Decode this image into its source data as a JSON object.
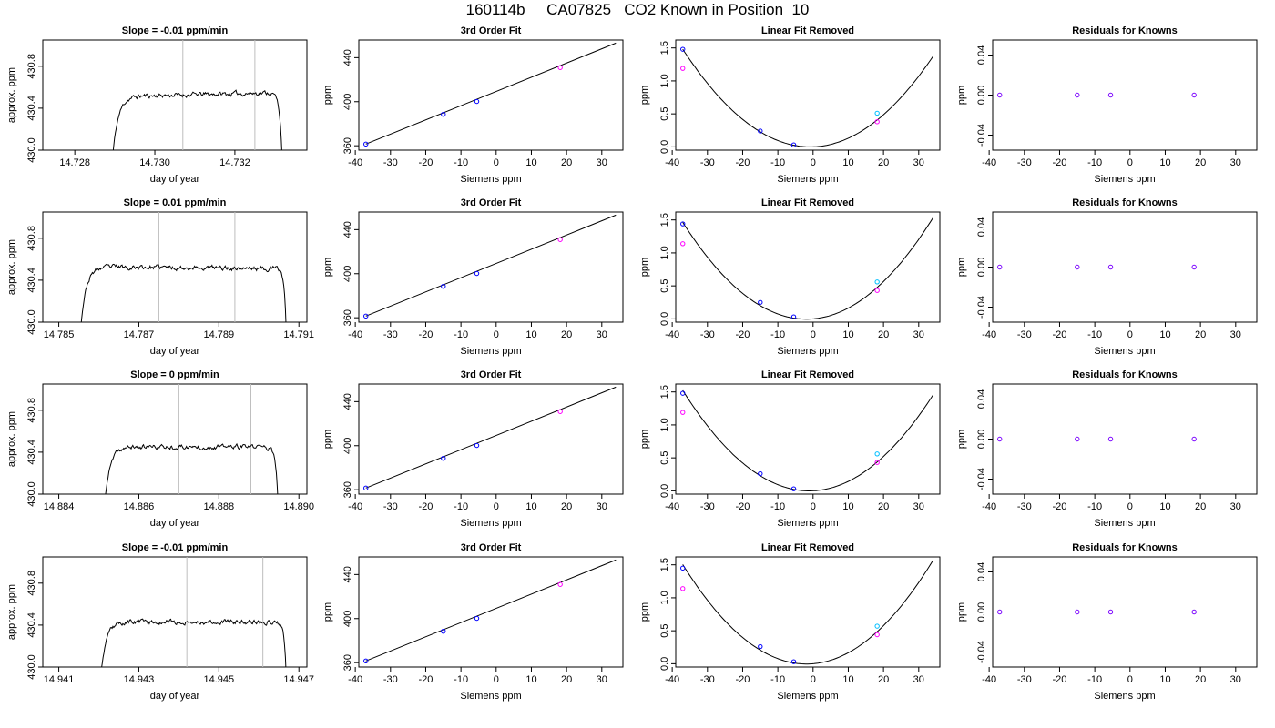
{
  "figure": {
    "title": "160114b     CA07825   CO2 Known in Position  10"
  },
  "colors": {
    "axis": "#000000",
    "curve": "#000000",
    "vline": "#bebebe",
    "point_blue": "#0000ff",
    "point_magenta": "#ff00ff",
    "point_cyan": "#00bfff",
    "point_purple": "#7a00ff"
  },
  "chart_data": [
    {
      "panel": "slope",
      "row": 1,
      "type": "line",
      "title": "Slope =  -0.01  ppm/min",
      "xlabel": "day of year",
      "ylabel": "approx. ppm",
      "xlim": [
        14.7272,
        14.7338
      ],
      "ylim": [
        430.0,
        431.05
      ],
      "xticks": [
        14.728,
        14.73,
        14.732
      ],
      "xtick_labels": [
        "14.728",
        "14.730",
        "14.732"
      ],
      "yticks": [
        430.0,
        430.4,
        430.8
      ],
      "ytick_labels": [
        "430.0",
        "430.4",
        "430.8"
      ],
      "vlines": [
        14.7307,
        14.7325
      ],
      "trace": {
        "start": 14.7289,
        "end": 14.7332,
        "plateau": 430.53,
        "drift": 0.04,
        "rise": 0.0003,
        "fall": 0.0001,
        "seed": 11
      }
    },
    {
      "panel": "fit",
      "row": 1,
      "type": "line",
      "title": "3rd Order Fit",
      "xlabel": "Siemens ppm",
      "ylabel": "ppm",
      "xlim": [
        -39,
        36
      ],
      "ylim": [
        356,
        456
      ],
      "xticks": [
        -40,
        -30,
        -20,
        -10,
        0,
        10,
        20,
        30
      ],
      "xtick_labels": [
        "-40",
        "-30",
        "-20",
        "-10",
        "0",
        "10",
        "20",
        "30"
      ],
      "yticks": [
        360,
        400,
        440
      ],
      "ytick_labels": [
        "360",
        "400",
        "440"
      ],
      "line": {
        "x": [
          -37,
          34
        ],
        "y": [
          361.5,
          453.2
        ]
      },
      "points": [
        {
          "x": -37,
          "y": 361.5,
          "color": "point_blue"
        },
        {
          "x": -15,
          "y": 388.5,
          "color": "point_blue"
        },
        {
          "x": -5.5,
          "y": 400.2,
          "color": "point_blue"
        },
        {
          "x": 18.2,
          "y": 431,
          "color": "point_magenta"
        }
      ]
    },
    {
      "panel": "linear",
      "row": 1,
      "type": "scatter",
      "title": "Linear Fit Removed",
      "xlabel": "Siemens ppm",
      "ylabel": "ppm",
      "xlim": [
        -39,
        36
      ],
      "ylim": [
        -0.05,
        1.62
      ],
      "xticks": [
        -40,
        -30,
        -20,
        -10,
        0,
        10,
        20,
        30
      ],
      "xtick_labels": [
        "-40",
        "-30",
        "-20",
        "-10",
        "0",
        "10",
        "20",
        "30"
      ],
      "yticks": [
        0.0,
        0.5,
        1.0,
        1.5
      ],
      "ytick_labels": [
        "0.0",
        "0.5",
        "1.0",
        "1.5"
      ],
      "curve": {
        "a": 0.00113,
        "b": 0.0018,
        "xmin": -37,
        "xmax": 34
      },
      "points": [
        {
          "x": -37,
          "y": 1.48,
          "color": "point_blue"
        },
        {
          "x": -37,
          "y": 1.19,
          "color": "point_magenta"
        },
        {
          "x": -15,
          "y": 0.24,
          "color": "point_blue"
        },
        {
          "x": -5.5,
          "y": 0.03,
          "color": "point_blue"
        },
        {
          "x": 18.2,
          "y": 0.51,
          "color": "point_cyan"
        },
        {
          "x": 18.2,
          "y": 0.38,
          "color": "point_magenta"
        }
      ]
    },
    {
      "panel": "residuals",
      "row": 1,
      "type": "scatter",
      "title": "Residuals for Knowns",
      "xlabel": "Siemens ppm",
      "ylabel": "ppm",
      "xlim": [
        -39,
        36
      ],
      "ylim": [
        -0.055,
        0.055
      ],
      "xticks": [
        -40,
        -30,
        -20,
        -10,
        0,
        10,
        20,
        30
      ],
      "xtick_labels": [
        "-40",
        "-30",
        "-20",
        "-10",
        "0",
        "10",
        "20",
        "30"
      ],
      "yticks": [
        -0.04,
        0.0,
        0.04
      ],
      "ytick_labels": [
        "-0.04",
        "0.00",
        "0.04"
      ],
      "points": [
        {
          "x": -37,
          "y": 0,
          "color": "point_purple"
        },
        {
          "x": -15,
          "y": 0,
          "color": "point_purple"
        },
        {
          "x": -5.5,
          "y": 0,
          "color": "point_purple"
        },
        {
          "x": 18.2,
          "y": 0,
          "color": "point_purple"
        }
      ]
    },
    {
      "panel": "slope",
      "row": 2,
      "type": "line",
      "title": "Slope =  0.01  ppm/min",
      "xlabel": "day of year",
      "ylabel": "approx. ppm",
      "xlim": [
        14.7846,
        14.7912
      ],
      "ylim": [
        430.0,
        431.05
      ],
      "xticks": [
        14.785,
        14.787,
        14.789,
        14.791
      ],
      "xtick_labels": [
        "14.785",
        "14.787",
        "14.789",
        "14.791"
      ],
      "yticks": [
        430.0,
        430.4,
        430.8
      ],
      "ytick_labels": [
        "430.0",
        "430.4",
        "430.8"
      ],
      "vlines": [
        14.7875,
        14.7894
      ],
      "trace": {
        "start": 14.7855,
        "end": 14.7907,
        "plateau": 430.52,
        "drift": -0.02,
        "rise": 0.0003,
        "fall": 8e-05,
        "seed": 23
      }
    },
    {
      "panel": "fit",
      "row": 2,
      "type": "line",
      "title": "3rd Order Fit",
      "xlabel": "Siemens ppm",
      "ylabel": "ppm",
      "xlim": [
        -39,
        36
      ],
      "ylim": [
        356,
        456
      ],
      "xticks": [
        -40,
        -30,
        -20,
        -10,
        0,
        10,
        20,
        30
      ],
      "xtick_labels": [
        "-40",
        "-30",
        "-20",
        "-10",
        "0",
        "10",
        "20",
        "30"
      ],
      "yticks": [
        360,
        400,
        440
      ],
      "ytick_labels": [
        "360",
        "400",
        "440"
      ],
      "line": {
        "x": [
          -37,
          34
        ],
        "y": [
          361.5,
          453.2
        ]
      },
      "points": [
        {
          "x": -37,
          "y": 361.5,
          "color": "point_blue"
        },
        {
          "x": -15,
          "y": 388.5,
          "color": "point_blue"
        },
        {
          "x": -5.5,
          "y": 400.2,
          "color": "point_blue"
        },
        {
          "x": 18.2,
          "y": 431,
          "color": "point_magenta"
        }
      ]
    },
    {
      "panel": "linear",
      "row": 2,
      "type": "scatter",
      "title": "Linear Fit Removed",
      "xlabel": "Siemens ppm",
      "ylabel": "ppm",
      "xlim": [
        -39,
        36
      ],
      "ylim": [
        -0.05,
        1.62
      ],
      "xticks": [
        -40,
        -30,
        -20,
        -10,
        0,
        10,
        20,
        30
      ],
      "xtick_labels": [
        "-40",
        "-30",
        "-20",
        "-10",
        "0",
        "10",
        "20",
        "30"
      ],
      "yticks": [
        0.0,
        0.5,
        1.0,
        1.5
      ],
      "ytick_labels": [
        "0.0",
        "0.5",
        "1.0",
        "1.5"
      ],
      "curve": {
        "a": 0.00119,
        "b": 0.0045,
        "xmin": -37,
        "xmax": 34
      },
      "points": [
        {
          "x": -37,
          "y": 1.44,
          "color": "point_blue"
        },
        {
          "x": -37,
          "y": 1.14,
          "color": "point_magenta"
        },
        {
          "x": -15,
          "y": 0.25,
          "color": "point_blue"
        },
        {
          "x": -5.5,
          "y": 0.03,
          "color": "point_blue"
        },
        {
          "x": 18.2,
          "y": 0.56,
          "color": "point_cyan"
        },
        {
          "x": 18.2,
          "y": 0.43,
          "color": "point_magenta"
        }
      ]
    },
    {
      "panel": "residuals",
      "row": 2,
      "type": "scatter",
      "title": "Residuals for Knowns",
      "xlabel": "Siemens ppm",
      "ylabel": "ppm",
      "xlim": [
        -39,
        36
      ],
      "ylim": [
        -0.055,
        0.055
      ],
      "xticks": [
        -40,
        -30,
        -20,
        -10,
        0,
        10,
        20,
        30
      ],
      "xtick_labels": [
        "-40",
        "-30",
        "-20",
        "-10",
        "0",
        "10",
        "20",
        "30"
      ],
      "yticks": [
        -0.04,
        0.0,
        0.04
      ],
      "ytick_labels": [
        "-0.04",
        "0.00",
        "0.04"
      ],
      "points": [
        {
          "x": -37,
          "y": 0,
          "color": "point_purple"
        },
        {
          "x": -15,
          "y": 0,
          "color": "point_purple"
        },
        {
          "x": -5.5,
          "y": 0,
          "color": "point_purple"
        },
        {
          "x": 18.2,
          "y": 0,
          "color": "point_purple"
        }
      ]
    },
    {
      "panel": "slope",
      "row": 3,
      "type": "line",
      "title": "Slope =  0  ppm/min",
      "xlabel": "day of year",
      "ylabel": "approx. ppm",
      "xlim": [
        14.8836,
        14.8902
      ],
      "ylim": [
        430.0,
        431.05
      ],
      "xticks": [
        14.884,
        14.886,
        14.888,
        14.89
      ],
      "xtick_labels": [
        "14.884",
        "14.886",
        "14.888",
        "14.890"
      ],
      "yticks": [
        430.0,
        430.4,
        430.8
      ],
      "ytick_labels": [
        "430.0",
        "430.4",
        "430.8"
      ],
      "vlines": [
        14.887,
        14.8888
      ],
      "trace": {
        "start": 14.8851,
        "end": 14.8895,
        "plateau": 430.45,
        "drift": 0.0,
        "rise": 0.0003,
        "fall": 0.0001,
        "seed": 37
      }
    },
    {
      "panel": "fit",
      "row": 3,
      "type": "line",
      "title": "3rd Order Fit",
      "xlabel": "Siemens ppm",
      "ylabel": "ppm",
      "xlim": [
        -39,
        36
      ],
      "ylim": [
        356,
        456
      ],
      "xticks": [
        -40,
        -30,
        -20,
        -10,
        0,
        10,
        20,
        30
      ],
      "xtick_labels": [
        "-40",
        "-30",
        "-20",
        "-10",
        "0",
        "10",
        "20",
        "30"
      ],
      "yticks": [
        360,
        400,
        440
      ],
      "ytick_labels": [
        "360",
        "400",
        "440"
      ],
      "line": {
        "x": [
          -37,
          34
        ],
        "y": [
          361.5,
          453.2
        ]
      },
      "points": [
        {
          "x": -37,
          "y": 361.5,
          "color": "point_blue"
        },
        {
          "x": -15,
          "y": 388.5,
          "color": "point_blue"
        },
        {
          "x": -5.5,
          "y": 400.2,
          "color": "point_blue"
        },
        {
          "x": 18.2,
          "y": 431,
          "color": "point_magenta"
        }
      ]
    },
    {
      "panel": "linear",
      "row": 3,
      "type": "scatter",
      "title": "Linear Fit Removed",
      "xlabel": "Siemens ppm",
      "ylabel": "ppm",
      "xlim": [
        -39,
        36
      ],
      "ylim": [
        -0.05,
        1.62
      ],
      "xticks": [
        -40,
        -30,
        -20,
        -10,
        0,
        10,
        20,
        30
      ],
      "xtick_labels": [
        "-40",
        "-30",
        "-20",
        "-10",
        "0",
        "10",
        "20",
        "30"
      ],
      "yticks": [
        0.0,
        0.5,
        1.0,
        1.5
      ],
      "ytick_labels": [
        "0.0",
        "0.5",
        "1.0",
        "1.5"
      ],
      "curve": {
        "a": 0.00118,
        "b": 0.0025,
        "xmin": -37,
        "xmax": 34
      },
      "points": [
        {
          "x": -37,
          "y": 1.48,
          "color": "point_blue"
        },
        {
          "x": -37,
          "y": 1.19,
          "color": "point_magenta"
        },
        {
          "x": -15,
          "y": 0.26,
          "color": "point_blue"
        },
        {
          "x": -5.5,
          "y": 0.03,
          "color": "point_blue"
        },
        {
          "x": 18.2,
          "y": 0.56,
          "color": "point_cyan"
        },
        {
          "x": 18.2,
          "y": 0.43,
          "color": "point_magenta"
        }
      ]
    },
    {
      "panel": "residuals",
      "row": 3,
      "type": "scatter",
      "title": "Residuals for Knowns",
      "xlabel": "Siemens ppm",
      "ylabel": "ppm",
      "xlim": [
        -39,
        36
      ],
      "ylim": [
        -0.055,
        0.055
      ],
      "xticks": [
        -40,
        -30,
        -20,
        -10,
        0,
        10,
        20,
        30
      ],
      "xtick_labels": [
        "-40",
        "-30",
        "-20",
        "-10",
        "0",
        "10",
        "20",
        "30"
      ],
      "yticks": [
        -0.04,
        0.0,
        0.04
      ],
      "ytick_labels": [
        "-0.04",
        "0.00",
        "0.04"
      ],
      "points": [
        {
          "x": -37,
          "y": 0,
          "color": "point_purple"
        },
        {
          "x": -15,
          "y": 0,
          "color": "point_purple"
        },
        {
          "x": -5.5,
          "y": 0,
          "color": "point_purple"
        },
        {
          "x": 18.2,
          "y": 0,
          "color": "point_purple"
        }
      ]
    },
    {
      "panel": "slope",
      "row": 4,
      "type": "line",
      "title": "Slope =  -0.01  ppm/min",
      "xlabel": "day of year",
      "ylabel": "approx. ppm",
      "xlim": [
        14.9406,
        14.9472
      ],
      "ylim": [
        430.0,
        431.05
      ],
      "xticks": [
        14.941,
        14.943,
        14.945,
        14.947
      ],
      "xtick_labels": [
        "14.941",
        "14.943",
        "14.945",
        "14.947"
      ],
      "yticks": [
        430.0,
        430.4,
        430.8
      ],
      "ytick_labels": [
        "430.0",
        "430.4",
        "430.8"
      ],
      "vlines": [
        14.9442,
        14.9461
      ],
      "trace": {
        "start": 14.942,
        "end": 14.9467,
        "plateau": 430.43,
        "drift": 0.0,
        "rise": 0.0003,
        "fall": 8e-05,
        "seed": 53
      }
    },
    {
      "panel": "fit",
      "row": 4,
      "type": "line",
      "title": "3rd Order Fit",
      "xlabel": "Siemens ppm",
      "ylabel": "ppm",
      "xlim": [
        -39,
        36
      ],
      "ylim": [
        356,
        456
      ],
      "xticks": [
        -40,
        -30,
        -20,
        -10,
        0,
        10,
        20,
        30
      ],
      "xtick_labels": [
        "-40",
        "-30",
        "-20",
        "-10",
        "0",
        "10",
        "20",
        "30"
      ],
      "yticks": [
        360,
        400,
        440
      ],
      "ytick_labels": [
        "360",
        "400",
        "440"
      ],
      "line": {
        "x": [
          -37,
          34
        ],
        "y": [
          361.5,
          453.2
        ]
      },
      "points": [
        {
          "x": -37,
          "y": 361.5,
          "color": "point_blue"
        },
        {
          "x": -15,
          "y": 388.5,
          "color": "point_blue"
        },
        {
          "x": -5.5,
          "y": 400.2,
          "color": "point_blue"
        },
        {
          "x": 18.2,
          "y": 431,
          "color": "point_magenta"
        }
      ]
    },
    {
      "panel": "linear",
      "row": 4,
      "type": "scatter",
      "title": "Linear Fit Removed",
      "xlabel": "Siemens ppm",
      "ylabel": "ppm",
      "xlim": [
        -39,
        36
      ],
      "ylim": [
        -0.05,
        1.62
      ],
      "xticks": [
        -40,
        -30,
        -20,
        -10,
        0,
        10,
        20,
        30
      ],
      "xtick_labels": [
        "-40",
        "-30",
        "-20",
        "-10",
        "0",
        "10",
        "20",
        "30"
      ],
      "yticks": [
        0.0,
        0.5,
        1.0,
        1.5
      ],
      "ytick_labels": [
        "0.0",
        "0.5",
        "1.0",
        "1.5"
      ],
      "curve": {
        "a": 0.00122,
        "b": 0.0045,
        "xmin": -37,
        "xmax": 34
      },
      "points": [
        {
          "x": -37,
          "y": 1.45,
          "color": "point_blue"
        },
        {
          "x": -37,
          "y": 1.14,
          "color": "point_magenta"
        },
        {
          "x": -15,
          "y": 0.26,
          "color": "point_blue"
        },
        {
          "x": -5.5,
          "y": 0.03,
          "color": "point_blue"
        },
        {
          "x": 18.2,
          "y": 0.57,
          "color": "point_cyan"
        },
        {
          "x": 18.2,
          "y": 0.44,
          "color": "point_magenta"
        }
      ]
    },
    {
      "panel": "residuals",
      "row": 4,
      "type": "scatter",
      "title": "Residuals for Knowns",
      "xlabel": "Siemens ppm",
      "ylabel": "ppm",
      "xlim": [
        -39,
        36
      ],
      "ylim": [
        -0.055,
        0.055
      ],
      "xticks": [
        -40,
        -30,
        -20,
        -10,
        0,
        10,
        20,
        30
      ],
      "xtick_labels": [
        "-40",
        "-30",
        "-20",
        "-10",
        "0",
        "10",
        "20",
        "30"
      ],
      "yticks": [
        -0.04,
        0.0,
        0.04
      ],
      "ytick_labels": [
        "-0.04",
        "0.00",
        "0.04"
      ],
      "points": [
        {
          "x": -37,
          "y": 0,
          "color": "point_purple"
        },
        {
          "x": -15,
          "y": 0,
          "color": "point_purple"
        },
        {
          "x": -5.5,
          "y": 0,
          "color": "point_purple"
        },
        {
          "x": 18.2,
          "y": 0,
          "color": "point_purple"
        }
      ]
    }
  ]
}
